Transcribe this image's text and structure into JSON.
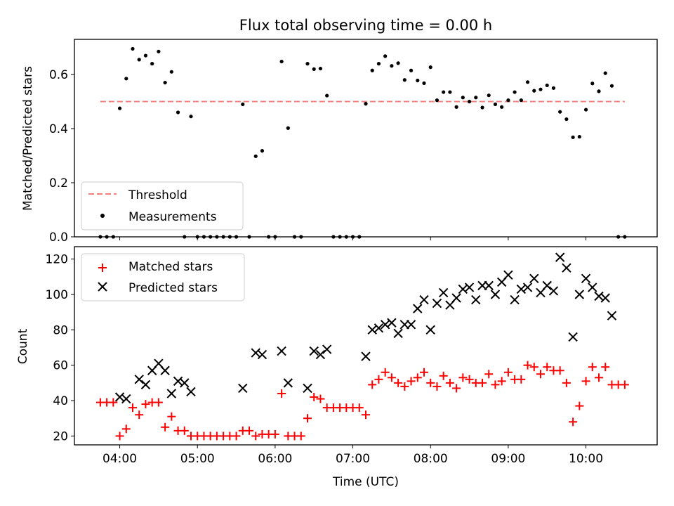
{
  "title": "Flux total observing time = 0.00 h",
  "chart_data": [
    {
      "type": "scatter",
      "ylabel": "Matched/Predicted stars",
      "xlim": [
        "03:25",
        "10:55"
      ],
      "ylim": [
        0,
        0.73
      ],
      "yticks": [
        0.0,
        0.2,
        0.4,
        0.6
      ],
      "ytick_labels": [
        "0.0",
        "0.2",
        "0.4",
        "0.6"
      ],
      "legend_position": "lower-left",
      "threshold": {
        "name": "Threshold",
        "value": 0.5,
        "x_range": [
          "03:45",
          "10:30"
        ],
        "color": "#f08080"
      },
      "series": [
        {
          "name": "Measurements",
          "color": "#000000",
          "x": [
            "03:45",
            "03:50",
            "03:55",
            "04:00",
            "04:05",
            "04:10",
            "04:15",
            "04:20",
            "04:25",
            "04:30",
            "04:35",
            "04:40",
            "04:45",
            "04:50",
            "04:55",
            "05:00",
            "05:05",
            "05:10",
            "05:15",
            "05:20",
            "05:25",
            "05:30",
            "05:35",
            "05:40",
            "05:45",
            "05:50",
            "05:55",
            "06:00",
            "06:05",
            "06:10",
            "06:15",
            "06:20",
            "06:25",
            "06:30",
            "06:35",
            "06:40",
            "06:45",
            "06:50",
            "06:55",
            "07:00",
            "07:05",
            "07:10",
            "07:15",
            "07:20",
            "07:25",
            "07:30",
            "07:35",
            "07:40",
            "07:45",
            "07:50",
            "07:55",
            "08:00",
            "08:05",
            "08:10",
            "08:15",
            "08:20",
            "08:25",
            "08:30",
            "08:35",
            "08:40",
            "08:45",
            "08:50",
            "08:55",
            "09:00",
            "09:05",
            "09:10",
            "09:15",
            "09:20",
            "09:25",
            "09:30",
            "09:35",
            "09:40",
            "09:45",
            "09:50",
            "09:55",
            "10:00",
            "10:05",
            "10:10",
            "10:15",
            "10:20",
            "10:25",
            "10:30"
          ],
          "y": [
            0,
            0,
            0,
            0.475,
            0.585,
            0.695,
            0.655,
            0.67,
            0.64,
            0.685,
            0.57,
            0.61,
            0.46,
            0,
            0.445,
            0,
            0,
            0,
            0,
            0,
            0,
            0,
            0.49,
            0,
            0.298,
            0.318,
            0,
            0,
            0.648,
            0.402,
            0,
            0,
            0.64,
            0.62,
            0.622,
            0.522,
            0,
            0,
            0,
            0,
            0,
            0.492,
            0.615,
            0.64,
            0.668,
            0.632,
            0.642,
            0.58,
            0.615,
            0.578,
            0.568,
            0.627,
            0.505,
            0.535,
            0.535,
            0.48,
            0.515,
            0.5,
            0.515,
            0.478,
            0.523,
            0.49,
            0.48,
            0.505,
            0.535,
            0.505,
            0.572,
            0.54,
            0.545,
            0.56,
            0.55,
            0.462,
            0.435,
            0.368,
            0.37,
            0.47,
            0.567,
            0.538,
            0.605,
            0.558,
            0,
            0
          ]
        }
      ]
    },
    {
      "type": "scatter",
      "xlabel": "Time (UTC)",
      "ylabel": "Count",
      "xlim": [
        "03:25",
        "10:55"
      ],
      "xticks": [
        "04:00",
        "05:00",
        "06:00",
        "07:00",
        "08:00",
        "09:00",
        "10:00"
      ],
      "ylim": [
        15,
        127
      ],
      "yticks": [
        20,
        40,
        60,
        80,
        100,
        120
      ],
      "legend_position": "upper-left",
      "series": [
        {
          "name": "Matched stars",
          "marker": "plus",
          "color": "#ff0000",
          "x": [
            "03:45",
            "03:50",
            "03:55",
            "04:00",
            "04:05",
            "04:10",
            "04:15",
            "04:20",
            "04:25",
            "04:30",
            "04:35",
            "04:40",
            "04:45",
            "04:50",
            "04:55",
            "05:00",
            "05:05",
            "05:10",
            "05:15",
            "05:20",
            "05:25",
            "05:30",
            "05:35",
            "05:40",
            "05:45",
            "05:50",
            "05:55",
            "06:00",
            "06:05",
            "06:10",
            "06:15",
            "06:20",
            "06:25",
            "06:30",
            "06:35",
            "06:40",
            "06:45",
            "06:50",
            "06:55",
            "07:00",
            "07:05",
            "07:10",
            "07:15",
            "07:20",
            "07:25",
            "07:30",
            "07:35",
            "07:40",
            "07:45",
            "07:50",
            "07:55",
            "08:00",
            "08:05",
            "08:10",
            "08:15",
            "08:20",
            "08:25",
            "08:30",
            "08:35",
            "08:40",
            "08:45",
            "08:50",
            "08:55",
            "09:00",
            "09:05",
            "09:10",
            "09:15",
            "09:20",
            "09:25",
            "09:30",
            "09:35",
            "09:40",
            "09:45",
            "09:50",
            "09:55",
            "10:00",
            "10:05",
            "10:10",
            "10:15",
            "10:20",
            "10:25",
            "10:30"
          ],
          "y": [
            39,
            39,
            39,
            20,
            24,
            36,
            32,
            38,
            39,
            39,
            25,
            31,
            23,
            23,
            20,
            20,
            20,
            20,
            20,
            20,
            20,
            20,
            23,
            23,
            20,
            21,
            21,
            21,
            44,
            20,
            20,
            20,
            30,
            42,
            41,
            36,
            36,
            36,
            36,
            36,
            36,
            32,
            49,
            52,
            56,
            53,
            50,
            48,
            51,
            53,
            56,
            50,
            48,
            54,
            50,
            47,
            53,
            52,
            50,
            50,
            55,
            49,
            51,
            56,
            52,
            52,
            60,
            59,
            55,
            59,
            57,
            57,
            50,
            28,
            37,
            51,
            59,
            53,
            59,
            49,
            49,
            49
          ]
        },
        {
          "name": "Predicted stars",
          "marker": "x",
          "color": "#000000",
          "x": [
            "04:00",
            "04:05",
            "04:15",
            "04:20",
            "04:25",
            "04:30",
            "04:35",
            "04:40",
            "04:45",
            "04:50",
            "04:55",
            "05:35",
            "05:45",
            "05:50",
            "06:05",
            "06:10",
            "06:25",
            "06:30",
            "06:35",
            "06:40",
            "07:10",
            "07:15",
            "07:20",
            "07:25",
            "07:30",
            "07:35",
            "07:40",
            "07:45",
            "07:50",
            "07:55",
            "08:00",
            "08:05",
            "08:10",
            "08:15",
            "08:20",
            "08:25",
            "08:30",
            "08:35",
            "08:40",
            "08:45",
            "08:50",
            "08:55",
            "09:00",
            "09:05",
            "09:10",
            "09:15",
            "09:20",
            "09:25",
            "09:30",
            "09:35",
            "09:40",
            "09:45",
            "09:50",
            "09:55",
            "10:00",
            "10:05",
            "10:10",
            "10:15",
            "10:20"
          ],
          "y": [
            42,
            41,
            52,
            49,
            57,
            61,
            57,
            44,
            51,
            50,
            45,
            47,
            67,
            66,
            68,
            50,
            47,
            68,
            66,
            69,
            65,
            80,
            81,
            83,
            84,
            78,
            83,
            83,
            92,
            97,
            80,
            95,
            101,
            94,
            98,
            103,
            104,
            97,
            105,
            105,
            100,
            107,
            111,
            97,
            103,
            104,
            109,
            101,
            105,
            102,
            121,
            115,
            76,
            100,
            109,
            104,
            99,
            98,
            88
          ]
        }
      ]
    }
  ]
}
